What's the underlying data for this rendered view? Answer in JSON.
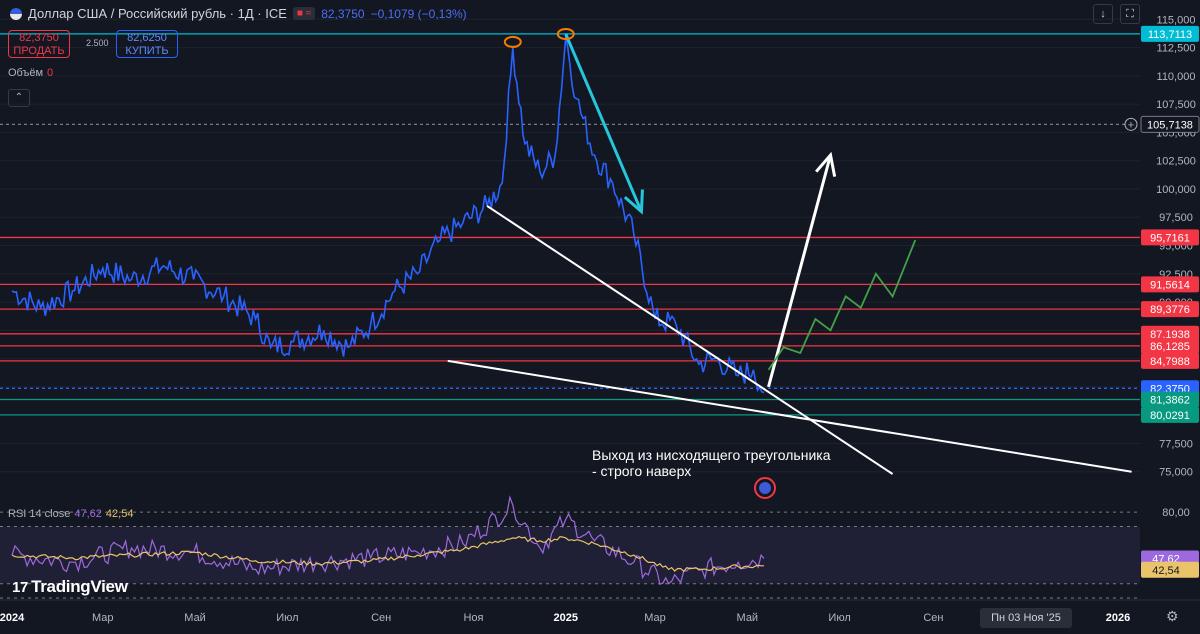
{
  "header": {
    "title": "Доллар США / Российский рубль · 1Д · ICE",
    "price": "82,3750",
    "change": "−0,1079 (−0,13%)",
    "sell_price": "82,3750",
    "sell_label": "ПРОДАТЬ",
    "buy_price": "82,6250",
    "buy_label": "КУПИТЬ",
    "spread": "2.500",
    "volume_label": "Объём",
    "volume_value": "0",
    "toolbar_icons": [
      "download-icon",
      "fullscreen-icon"
    ]
  },
  "rsi": {
    "label": "RSI 14 close",
    "value1": "47,62",
    "value2": "42,54",
    "color_rsi": "#9c6ade",
    "color_ma": "#e9c46a"
  },
  "annotation": {
    "line1": "Выход из нисходящего треугольника",
    "line2": "- строго наверх"
  },
  "branding": {
    "logo_text": "TradingView"
  },
  "time_axis": {
    "labels": [
      "2024",
      "Мар",
      "Май",
      "Июл",
      "Сен",
      "Ноя",
      "2025",
      "Мар",
      "Май",
      "Июл",
      "Сен",
      "2026"
    ],
    "crosshair_date": "Пн 03 Ноя '25"
  },
  "chart_data": {
    "type": "line",
    "title": "Доллар США / Российский рубль · 1Д · ICE",
    "x_range": [
      "2024-01",
      "2026-01"
    ],
    "ylim": [
      72.5,
      116
    ],
    "y_ticks": [
      75.0,
      77.5,
      80.0,
      82.5,
      85.0,
      87.5,
      90.0,
      92.5,
      95.0,
      97.5,
      100.0,
      102.5,
      105.0,
      107.5,
      110.0,
      112.5,
      115.0
    ],
    "y_tick_labels": [
      "75,000",
      "77,500",
      "80,000",
      "82,500",
      "85,000",
      "87,500",
      "90,000",
      "92,500",
      "95,000",
      "97,500",
      "100,000",
      "102,500",
      "105,000",
      "107,500",
      "110,000",
      "112,500",
      "115,000"
    ],
    "price_series": {
      "color": "#2962ff",
      "x": [
        "2024-01-01",
        "2024-01-20",
        "2024-02-10",
        "2024-03-01",
        "2024-03-20",
        "2024-04-10",
        "2024-04-30",
        "2024-05-20",
        "2024-06-10",
        "2024-06-20",
        "2024-07-05",
        "2024-07-25",
        "2024-08-10",
        "2024-08-25",
        "2024-09-10",
        "2024-09-25",
        "2024-10-10",
        "2024-10-25",
        "2024-11-10",
        "2024-11-20",
        "2024-11-27",
        "2024-12-05",
        "2024-12-15",
        "2024-12-25",
        "2025-01-01",
        "2025-01-08",
        "2025-01-20",
        "2025-02-01",
        "2025-02-15",
        "2025-03-01",
        "2025-03-15",
        "2025-03-30",
        "2025-04-10",
        "2025-04-25",
        "2025-05-05",
        "2025-05-12"
      ],
      "y": [
        91.0,
        89.5,
        91.0,
        93.0,
        92.0,
        93.2,
        92.0,
        90.5,
        88.5,
        86.0,
        86.5,
        87.5,
        86.0,
        88.0,
        91.0,
        92.5,
        95.5,
        97.0,
        98.5,
        100.5,
        112.5,
        104.0,
        101.5,
        103.0,
        113.5,
        108.0,
        103.0,
        100.5,
        96.0,
        88.5,
        88.0,
        84.5,
        85.0,
        83.5,
        84.0,
        82.0
      ]
    },
    "rsi_series": {
      "ylim": [
        20,
        85
      ],
      "reference_lines": [
        80,
        70,
        30,
        20
      ],
      "label_80": "80,00",
      "x": [
        "2024-01-01",
        "2024-02-10",
        "2024-03-20",
        "2024-04-30",
        "2024-06-10",
        "2024-07-20",
        "2024-08-25",
        "2024-09-25",
        "2024-10-25",
        "2024-11-27",
        "2024-12-15",
        "2025-01-01",
        "2025-01-20",
        "2025-02-15",
        "2025-03-10",
        "2025-04-01",
        "2025-04-25",
        "2025-05-12"
      ],
      "rsi": [
        50,
        45,
        55,
        52,
        40,
        45,
        48,
        52,
        58,
        85,
        55,
        75,
        60,
        45,
        30,
        40,
        45,
        47.62
      ],
      "ma": [
        50,
        48,
        50,
        52,
        46,
        44,
        46,
        50,
        54,
        62,
        60,
        62,
        58,
        50,
        40,
        40,
        42,
        42.54
      ]
    },
    "horizontal_levels": [
      {
        "value": 113.7113,
        "label": "113,7113",
        "color": "#00bcd4"
      },
      {
        "value": 105.7138,
        "label": "105,7138",
        "color": "#787b86",
        "dashed": true
      },
      {
        "value": 95.7161,
        "label": "95,7161",
        "color": "#f23645"
      },
      {
        "value": 91.5614,
        "label": "91,5614",
        "color": "#f23645"
      },
      {
        "value": 89.3776,
        "label": "89,3776",
        "color": "#f23645"
      },
      {
        "value": 87.1938,
        "label": "87,1938",
        "color": "#f23645"
      },
      {
        "value": 86.1285,
        "label": "86,1285",
        "color": "#f23645"
      },
      {
        "value": 84.7988,
        "label": "84,7988",
        "color": "#f23645"
      },
      {
        "value": 82.375,
        "label": "82,3750",
        "color": "#2962ff",
        "dashed": true
      },
      {
        "value": 81.3862,
        "label": "81,3862",
        "color": "#089981"
      },
      {
        "value": 80.0291,
        "label": "80,0291",
        "color": "#089981"
      }
    ],
    "drawings": [
      {
        "kind": "trendline",
        "color": "#ffffff",
        "from": [
          "2024-11-10",
          98.5
        ],
        "to": [
          "2025-08-05",
          74.8
        ]
      },
      {
        "kind": "trendline",
        "color": "#ffffff",
        "from": [
          "2024-10-15",
          84.8
        ],
        "to": [
          "2026-01-10",
          75.0
        ]
      },
      {
        "kind": "arrow",
        "color": "#26c6da",
        "from": [
          "2025-01-01",
          113.7
        ],
        "to": [
          "2025-02-20",
          98.0
        ]
      },
      {
        "kind": "arrow",
        "color": "#ffffff",
        "from": [
          "2025-05-15",
          82.5
        ],
        "to": [
          "2025-06-25",
          103.0
        ]
      },
      {
        "kind": "path",
        "color": "#43a047",
        "points": [
          [
            "2025-05-15",
            84.0
          ],
          [
            "2025-05-25",
            86.0
          ],
          [
            "2025-06-05",
            85.5
          ],
          [
            "2025-06-15",
            88.5
          ],
          [
            "2025-06-25",
            87.5
          ],
          [
            "2025-07-05",
            90.5
          ],
          [
            "2025-07-15",
            89.5
          ],
          [
            "2025-07-25",
            92.5
          ],
          [
            "2025-08-05",
            90.5
          ],
          [
            "2025-08-20",
            95.5
          ]
        ]
      },
      {
        "kind": "ellipse",
        "color": "#f57c00",
        "at": [
          "2024-11-27",
          113.0
        ]
      },
      {
        "kind": "ellipse",
        "color": "#f57c00",
        "at": [
          "2025-01-01",
          113.7
        ]
      }
    ]
  }
}
